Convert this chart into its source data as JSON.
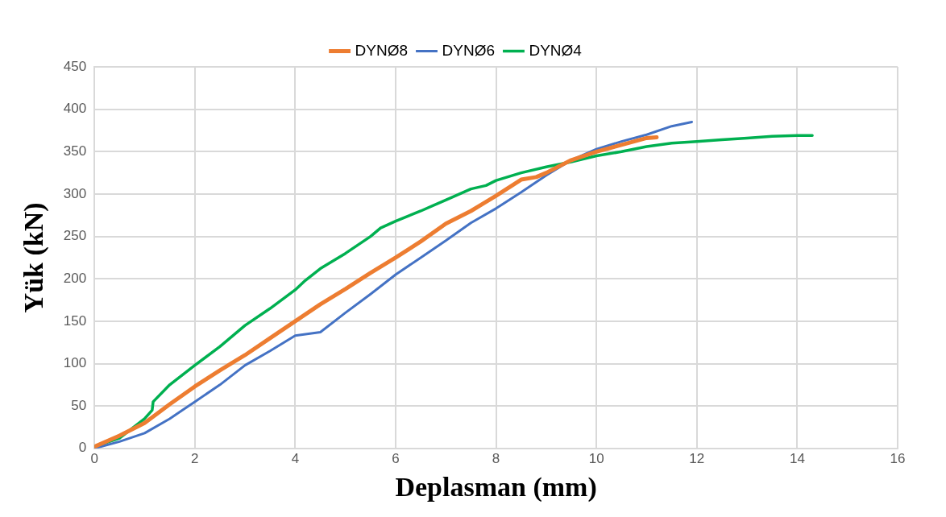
{
  "chart_data": {
    "type": "line",
    "xlabel": "Deplasman (mm)",
    "ylabel": "Yük (kN)",
    "xlim": [
      0,
      16
    ],
    "xticks": [
      0,
      2,
      4,
      6,
      8,
      10,
      12,
      14,
      16
    ],
    "ylim": [
      0,
      450
    ],
    "yticks": [
      0,
      50,
      100,
      150,
      200,
      250,
      300,
      350,
      400,
      450
    ],
    "grid": true,
    "legend": "top",
    "marker": "none",
    "line_style": "solid",
    "series": [
      {
        "name": "DYNØ8",
        "color": "#ed7d31",
        "x": [
          0,
          0.5,
          1,
          1.5,
          2,
          2.5,
          3,
          3.5,
          4,
          4.5,
          5,
          5.5,
          6,
          6.5,
          7,
          7.5,
          8,
          8.5,
          8.8,
          9,
          9.5,
          10,
          10.5,
          11,
          11.2
        ],
        "values": [
          2,
          15,
          30,
          52,
          73,
          92,
          110,
          130,
          150,
          170,
          188,
          207,
          225,
          244,
          265,
          280,
          298,
          317,
          320,
          325,
          340,
          350,
          358,
          366,
          367
        ]
      },
      {
        "name": "DYNØ6",
        "color": "#4472c4",
        "x": [
          0,
          0.5,
          1,
          1.5,
          2,
          2.5,
          3,
          3.5,
          4,
          4.5,
          5,
          5.5,
          6,
          6.5,
          7,
          7.5,
          8,
          8.5,
          9,
          9.5,
          10,
          10.5,
          11,
          11.5,
          11.9
        ],
        "values": [
          0,
          8,
          18,
          35,
          55,
          75,
          98,
          115,
          133,
          137,
          160,
          182,
          205,
          225,
          245,
          266,
          283,
          302,
          322,
          340,
          353,
          362,
          370,
          380,
          385
        ]
      },
      {
        "name": "DYNØ4",
        "color": "#00b050",
        "x": [
          0,
          0.5,
          1,
          1.15,
          1.17,
          1.5,
          2,
          2.5,
          3,
          3.5,
          4,
          4.2,
          4.5,
          5,
          5.5,
          5.7,
          6,
          6.5,
          7,
          7.5,
          7.8,
          8,
          8.5,
          9,
          9.5,
          10,
          10.5,
          11,
          11.5,
          12,
          12.5,
          13,
          13.5,
          14,
          14.3
        ],
        "values": [
          2,
          12,
          35,
          45,
          55,
          75,
          98,
          120,
          145,
          165,
          187,
          198,
          212,
          230,
          250,
          260,
          268,
          280,
          293,
          306,
          310,
          316,
          325,
          332,
          338,
          345,
          350,
          356,
          360,
          362,
          364,
          366,
          368,
          369,
          369
        ]
      }
    ]
  }
}
